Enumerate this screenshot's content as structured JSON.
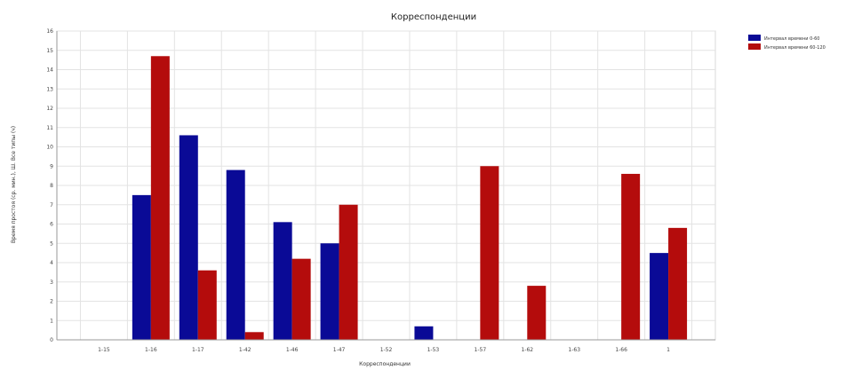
{
  "chart_data": {
    "type": "bar",
    "title": "Корреспонденции",
    "xlabel": "Корреспонденции",
    "ylabel": "Время простоя (ср. мин.), Ш. Все типы (ч)",
    "ylim": [
      0,
      16
    ],
    "yticks": [
      0,
      1,
      2,
      3,
      4,
      5,
      6,
      7,
      8,
      9,
      10,
      11,
      12,
      13,
      14,
      15,
      16
    ],
    "grid": true,
    "legend_position": "top-right",
    "categories": [
      "1-15",
      "1-16",
      "1-17",
      "1-42",
      "1-46",
      "1-47",
      "1-52",
      "1-53",
      "1-57",
      "1-62",
      "1-63",
      "1-66",
      "1"
    ],
    "series": [
      {
        "name": "Интервал времени 0-60",
        "color": "#0a0a96",
        "values": [
          0,
          7.5,
          10.6,
          8.8,
          6.1,
          5.0,
          0,
          0.7,
          0,
          0,
          0,
          0,
          4.5
        ]
      },
      {
        "name": "Интервал времени 60-120",
        "color": "#b40c0c",
        "values": [
          0,
          14.7,
          3.6,
          0.4,
          4.2,
          7.0,
          0,
          0,
          9.0,
          2.8,
          0,
          8.6,
          5.8
        ]
      }
    ]
  }
}
